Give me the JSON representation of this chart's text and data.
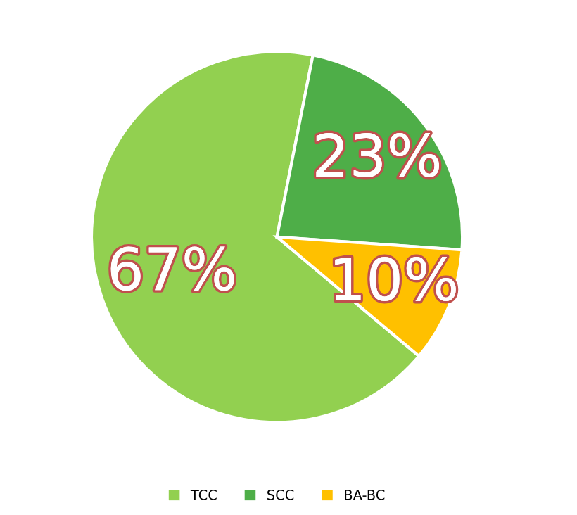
{
  "chart_data": {
    "type": "pie",
    "categories": [
      "TCC",
      "SCC",
      "BA-BC"
    ],
    "values": [
      67,
      23,
      10
    ],
    "colors": [
      "#92d050",
      "#4eae48",
      "#ffc000"
    ],
    "value_labels": [
      "67%",
      "23%",
      "10%"
    ],
    "legend": "bottom"
  }
}
